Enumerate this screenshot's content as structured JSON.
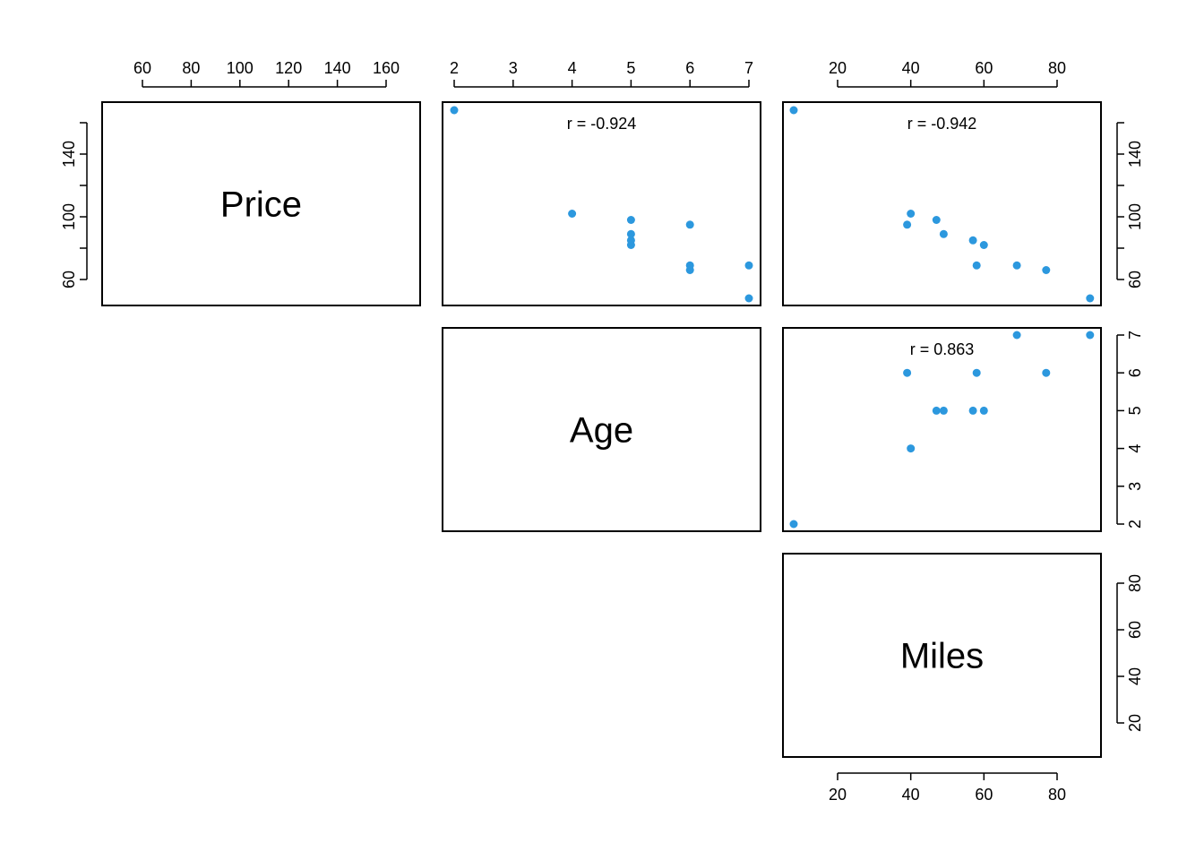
{
  "chart_data": {
    "type": "scatter",
    "title": "",
    "variables": [
      "Price",
      "Age",
      "Miles"
    ],
    "point_color": "#2c98de",
    "grid": false,
    "axes": {
      "Price": {
        "range": [
          45,
          175
        ],
        "ticks": [
          60,
          80,
          100,
          120,
          140,
          160
        ],
        "tick_labels": [
          "60",
          "80",
          "100",
          "120",
          "140",
          "160"
        ],
        "minor_ticks": [
          80,
          120
        ],
        "labeled_ticks_vertical": [
          "60",
          "100",
          "140"
        ]
      },
      "Age": {
        "range": [
          1.8,
          7.2
        ],
        "ticks": [
          2,
          3,
          4,
          5,
          6,
          7
        ],
        "tick_labels": [
          "2",
          "3",
          "4",
          "5",
          "6",
          "7"
        ]
      },
      "Miles": {
        "range": [
          5,
          92
        ],
        "ticks": [
          20,
          40,
          60,
          80
        ],
        "tick_labels": [
          "20",
          "40",
          "60",
          "80"
        ]
      }
    },
    "correlations": [
      {
        "row": "Price",
        "col": "Age",
        "label": "r = -0.924"
      },
      {
        "row": "Price",
        "col": "Miles",
        "label": "r = -0.942"
      },
      {
        "row": "Age",
        "col": "Miles",
        "label": "r = 0.863"
      }
    ],
    "points": [
      {
        "Price": 168,
        "Age": 2,
        "Miles": 8
      },
      {
        "Price": 102,
        "Age": 4,
        "Miles": 40
      },
      {
        "Price": 98,
        "Age": 5,
        "Miles": 47
      },
      {
        "Price": 89,
        "Age": 5,
        "Miles": 49
      },
      {
        "Price": 85,
        "Age": 5,
        "Miles": 57
      },
      {
        "Price": 82,
        "Age": 5,
        "Miles": 60
      },
      {
        "Price": 95,
        "Age": 6,
        "Miles": 39
      },
      {
        "Price": 69,
        "Age": 6,
        "Miles": 58
      },
      {
        "Price": 66,
        "Age": 6,
        "Miles": 77
      },
      {
        "Price": 69,
        "Age": 7,
        "Miles": 69
      },
      {
        "Price": 48,
        "Age": 7,
        "Miles": 89
      }
    ]
  }
}
